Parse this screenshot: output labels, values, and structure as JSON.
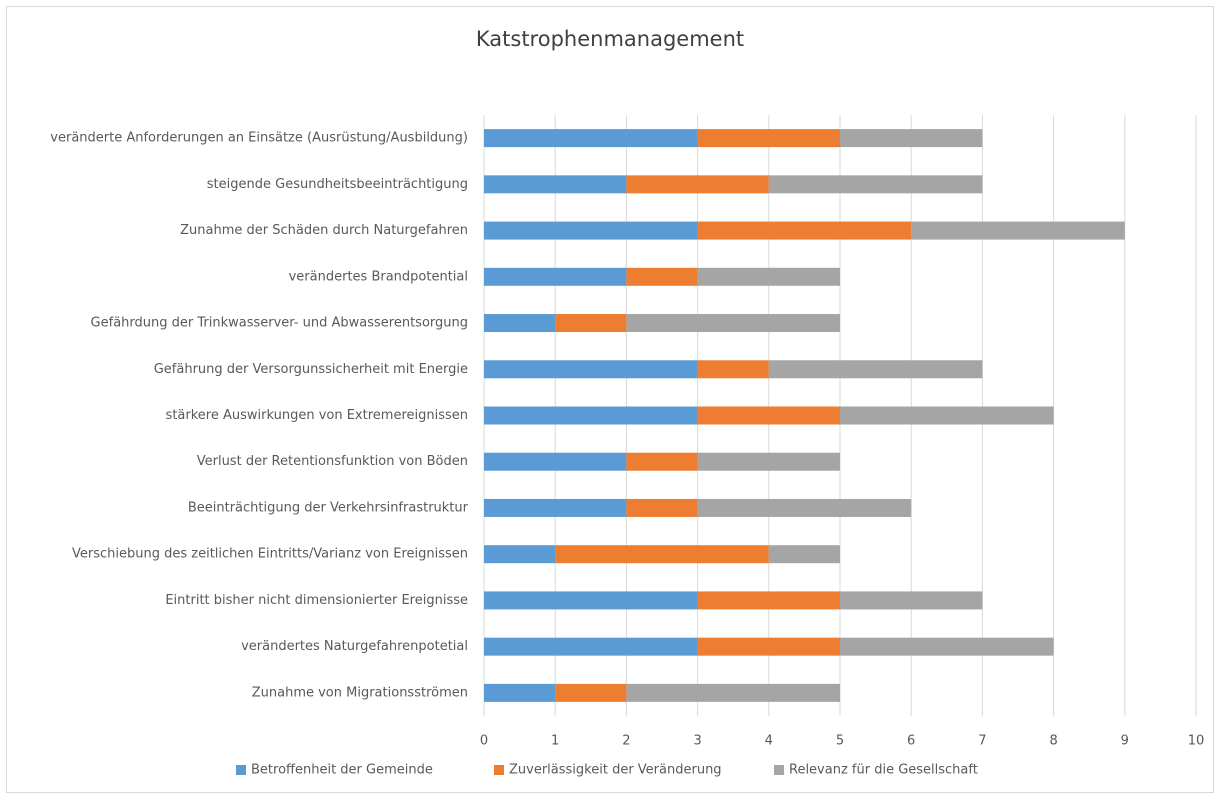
{
  "chart_data": {
    "type": "stacked_bar_horizontal",
    "title": "Katstrophenmanagement",
    "categories": [
      "veränderte Anforderungen an Einsätze (Ausrüstung/Ausbildung)",
      "steigende Gesundheitsbeeinträchtigung",
      "Zunahme der Schäden durch Naturgefahren",
      "verändertes Brandpotential",
      "Gefährdung der Trinkwasserver- und Abwasserentsorgung",
      "Gefährung der Versorgunssicherheit mit Energie",
      "stärkere Auswirkungen von Extremereignissen",
      "Verlust der Retentionsfunktion von Böden",
      "Beeinträchtigung der Verkehrsinfrastruktur",
      "Verschiebung des zeitlichen Eintritts/Varianz von Ereignissen",
      "Eintritt bisher nicht dimensionierter Ereignisse",
      "verändertes Naturgefahrenpotetial",
      "Zunahme von Migrationsströmen"
    ],
    "series": [
      {
        "name": "Betroffenheit der Gemeinde",
        "color": "#5b9bd5",
        "values": [
          3,
          2,
          3,
          2,
          1,
          3,
          3,
          2,
          2,
          1,
          3,
          3,
          1
        ]
      },
      {
        "name": "Zuverlässigkeit der Veränderung",
        "color": "#ed7d31",
        "values": [
          2,
          2,
          3,
          1,
          1,
          1,
          2,
          1,
          1,
          3,
          2,
          2,
          1
        ]
      },
      {
        "name": "Relevanz für die Gesellschaft",
        "color": "#a5a5a5",
        "values": [
          2,
          3,
          3,
          2,
          3,
          3,
          3,
          2,
          3,
          1,
          2,
          3,
          3
        ]
      }
    ],
    "xlim": [
      0,
      10
    ],
    "xticks": [
      0,
      1,
      2,
      3,
      4,
      5,
      6,
      7,
      8,
      9,
      10
    ],
    "grid": true,
    "legend": "bottom"
  }
}
